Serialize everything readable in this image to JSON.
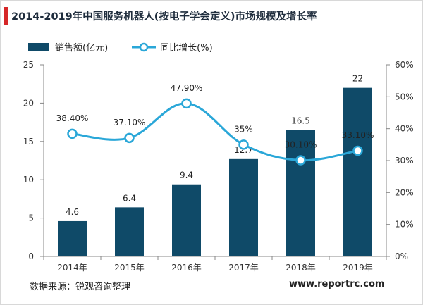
{
  "header": {
    "title": "2014-2019年中国服务机器人(按电子学会定义)市场规模及增长率"
  },
  "footer": {
    "source": "数据来源：锐观咨询整理",
    "website": "www.reportrc.com"
  },
  "colors": {
    "bar": "#0f4a68",
    "line": "#2aa7d8",
    "axis": "#888888"
  },
  "chart_data": {
    "type": "bar",
    "title": "2014-2019年中国服务机器人(按电子学会定义)市场规模及增长率",
    "categories": [
      "2014年",
      "2015年",
      "2016年",
      "2017年",
      "2018年",
      "2019年"
    ],
    "series": [
      {
        "name": "销售额(亿元)",
        "type": "bar",
        "axis": "left",
        "values": [
          4.6,
          6.4,
          9.4,
          12.7,
          16.5,
          22
        ],
        "labels": [
          "4.6",
          "6.4",
          "9.4",
          "12.7",
          "16.5",
          "22"
        ]
      },
      {
        "name": "同比增长(%)",
        "type": "line",
        "axis": "right",
        "smooth": true,
        "values": [
          38.4,
          37.1,
          47.9,
          35,
          30.1,
          33.1
        ],
        "labels": [
          "38.40%",
          "37.10%",
          "47.90%",
          "35%",
          "30.10%",
          "33.10%"
        ]
      }
    ],
    "ylim_left": [
      0,
      25
    ],
    "yticks_left": [
      "0",
      "5",
      "10",
      "15",
      "20",
      "25"
    ],
    "ylim_right": [
      0,
      60
    ],
    "yticks_right": [
      "0%",
      "10%",
      "20%",
      "30%",
      "40%",
      "50%",
      "60%"
    ],
    "grid": false,
    "legend": "top-left"
  }
}
